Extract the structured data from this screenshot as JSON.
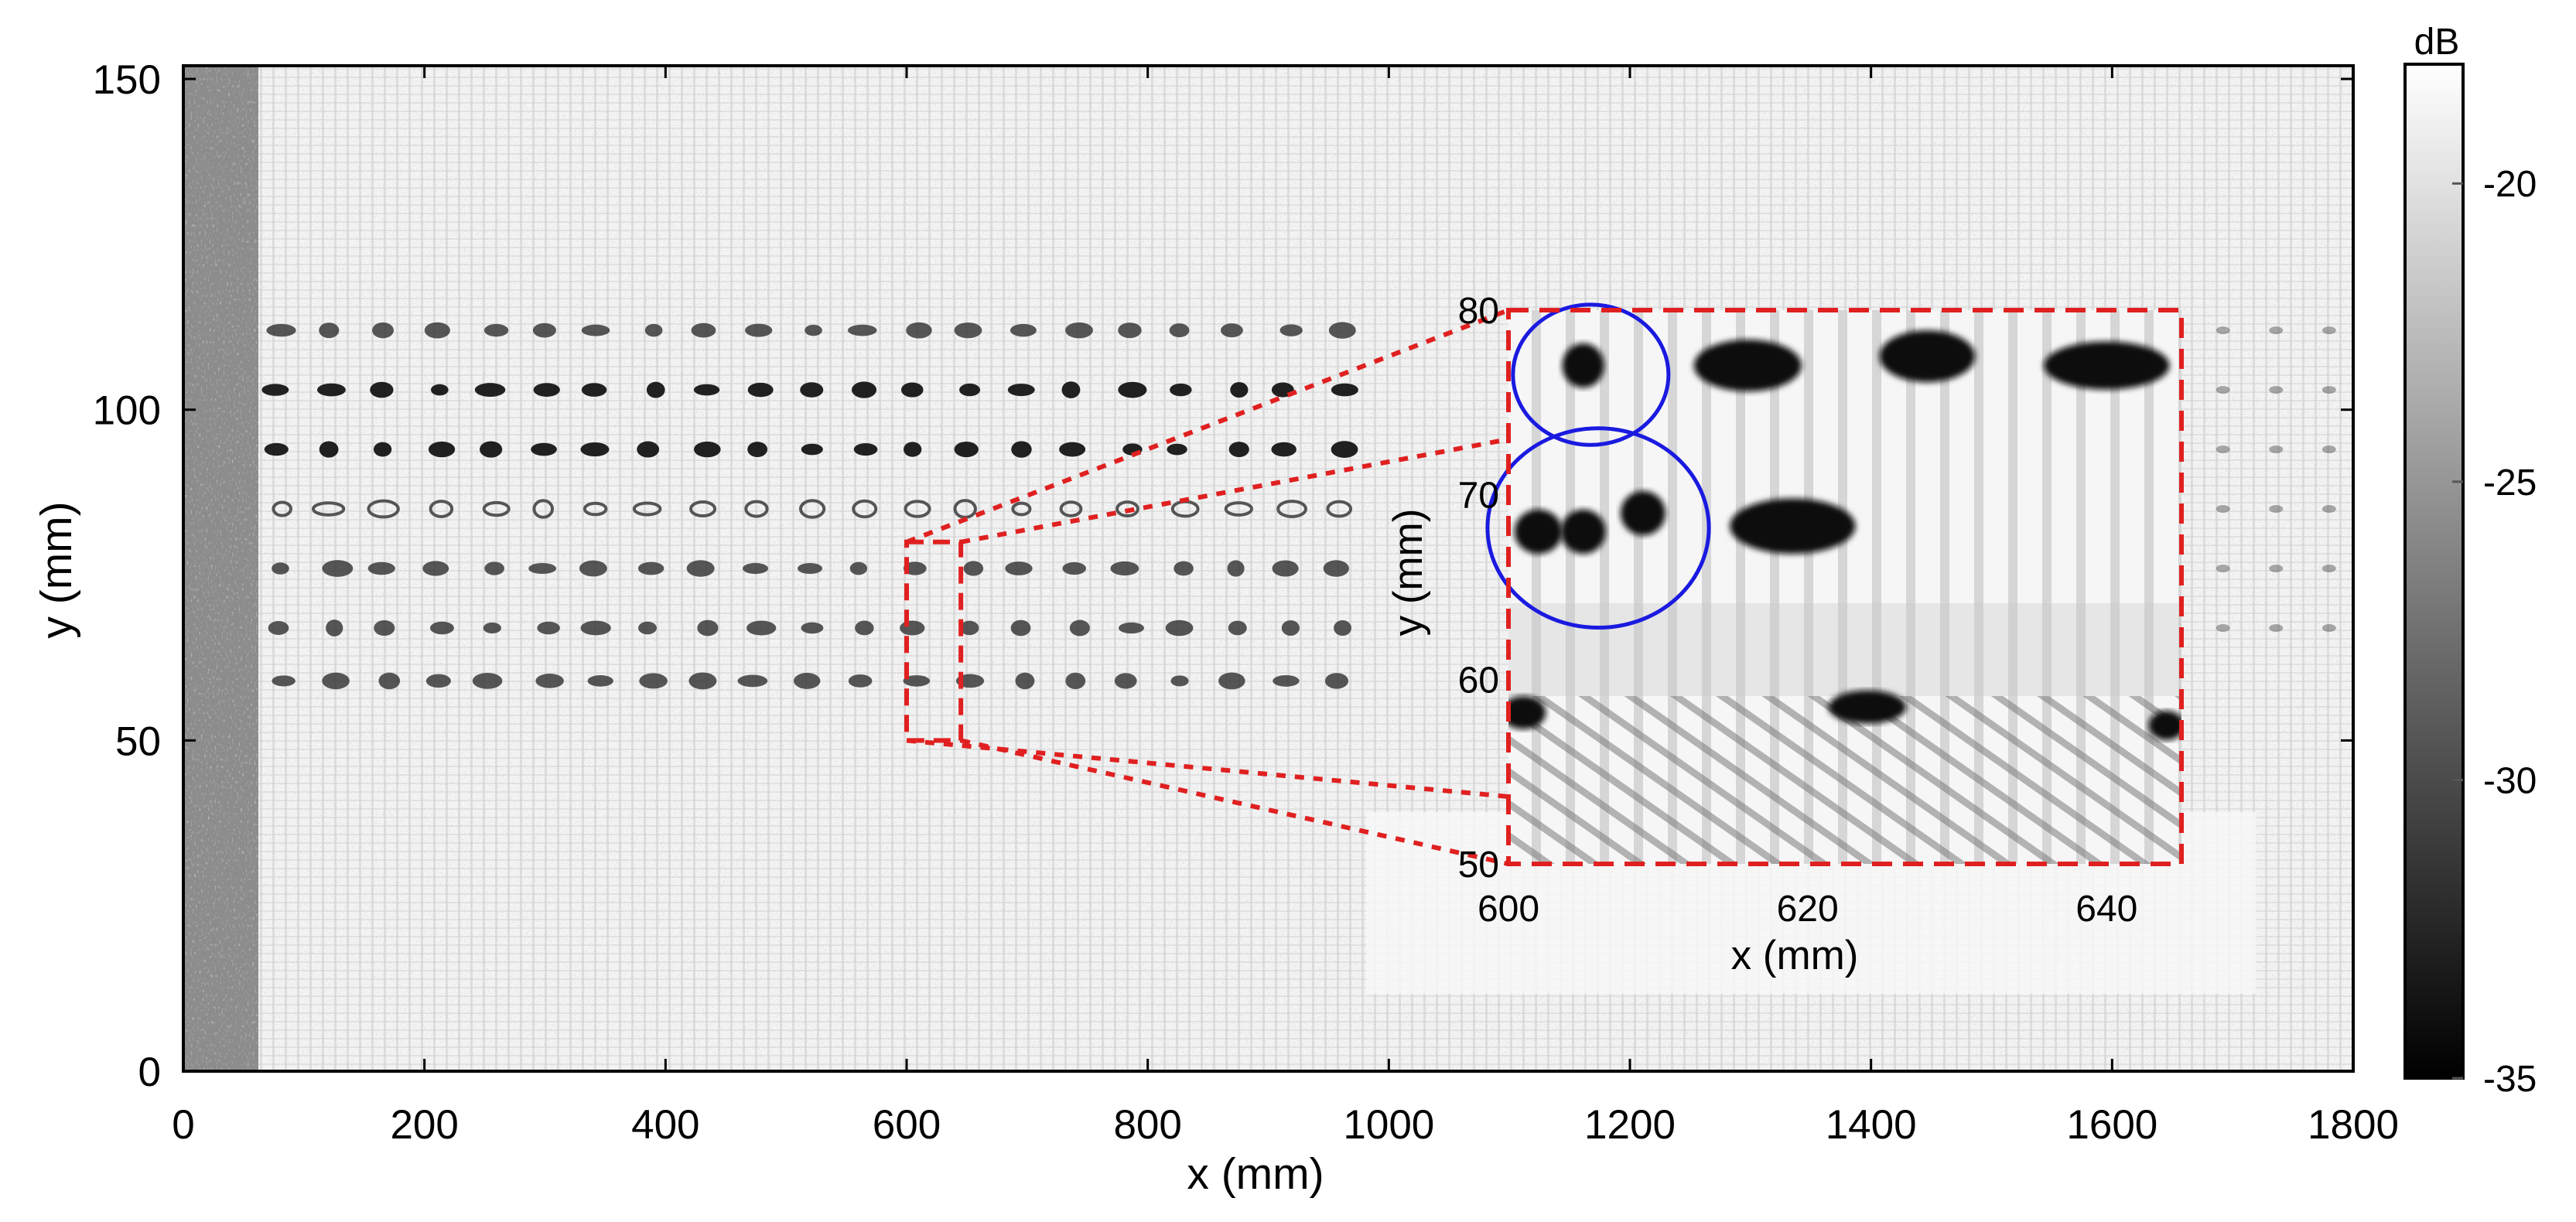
{
  "chart_data": {
    "type": "heatmap",
    "title": "",
    "xlabel": "x (mm)",
    "ylabel": "y (mm)",
    "xlim": [
      0,
      1800
    ],
    "ylim": [
      0,
      152
    ],
    "x_ticks": [
      "0",
      "200",
      "400",
      "600",
      "800",
      "1000",
      "1200",
      "1400",
      "1600",
      "1800"
    ],
    "y_ticks": [
      "0",
      "50",
      "100",
      "150"
    ],
    "colormap": "gray",
    "colorbar": {
      "label": "dB",
      "range": [
        -35,
        -18
      ],
      "ticks": [
        "-20",
        "-25",
        "-30",
        "-35"
      ]
    },
    "features": {
      "defect_row_y_mm": [
        112,
        103,
        94,
        85,
        76,
        67,
        59
      ],
      "defect_x_range_mm": [
        70,
        990
      ],
      "defect_spacing_mm": 44,
      "strong_row_y_mm": [
        103,
        94
      ],
      "hollow_row_y_mm": 85,
      "edge_strip_x_mm": [
        0,
        60
      ]
    },
    "zoom_region": {
      "x_range_mm": [
        600,
        645
      ],
      "y_range_mm": [
        50,
        80
      ],
      "box_color": "#e02020"
    },
    "inset": {
      "xlabel": "x (mm)",
      "ylabel": "y (mm)",
      "x_ticks": [
        "600",
        "620",
        "640"
      ],
      "y_ticks": [
        "50",
        "60",
        "70",
        "80"
      ],
      "xlim": [
        600,
        645
      ],
      "ylim": [
        50,
        80
      ],
      "blobs": [
        {
          "x": 602,
          "y": 68,
          "rx": 1.6,
          "ry": 1.2
        },
        {
          "x": 605,
          "y": 68,
          "rx": 1.5,
          "ry": 1.2
        },
        {
          "x": 609,
          "y": 69,
          "rx": 1.5,
          "ry": 1.2
        },
        {
          "x": 605,
          "y": 77,
          "rx": 1.4,
          "ry": 1.2
        },
        {
          "x": 616,
          "y": 77,
          "rx": 3.6,
          "ry": 1.4
        },
        {
          "x": 628,
          "y": 77.5,
          "rx": 3.2,
          "ry": 1.4
        },
        {
          "x": 640,
          "y": 77,
          "rx": 4.2,
          "ry": 1.3
        },
        {
          "x": 619,
          "y": 68.3,
          "rx": 4.2,
          "ry": 1.5
        },
        {
          "x": 601,
          "y": 58.2,
          "rx": 1.5,
          "ry": 0.9
        },
        {
          "x": 624,
          "y": 58.5,
          "rx": 2.6,
          "ry": 0.9
        },
        {
          "x": 644,
          "y": 57.5,
          "rx": 1.2,
          "ry": 0.8
        }
      ],
      "circles": [
        {
          "cx": 605.5,
          "cy": 76.5,
          "rx": 5.2,
          "ry": 3.8,
          "color": "#1a1ae0"
        },
        {
          "cx": 606,
          "cy": 68.2,
          "rx": 7.4,
          "ry": 5.4,
          "color": "#1a1ae0"
        }
      ]
    }
  }
}
